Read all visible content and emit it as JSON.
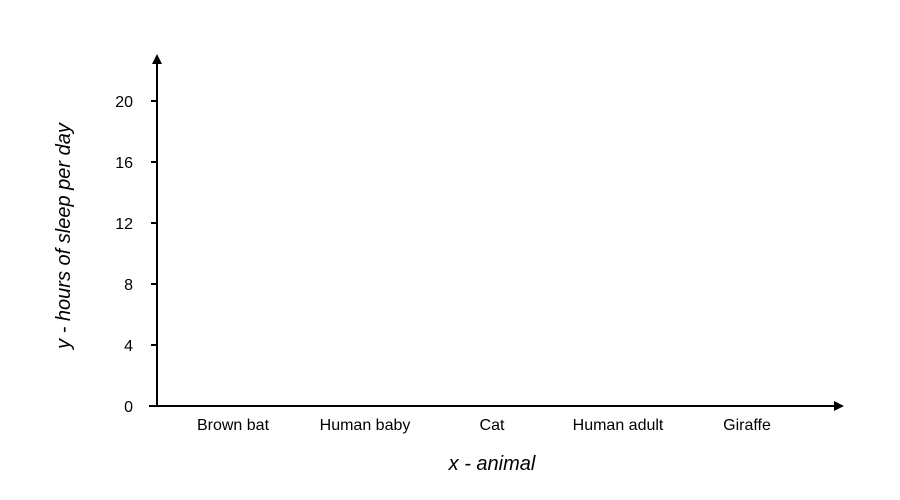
{
  "chart_data": {
    "type": "bar",
    "title": "",
    "xlabel": "x - animal",
    "ylabel": "y - hours of sleep per day",
    "categories": [
      "Brown bat",
      "Human baby",
      "Cat",
      "Human adult",
      "Giraffe"
    ],
    "y_ticks": [
      "0",
      "4",
      "8",
      "12",
      "16",
      "20"
    ],
    "ylim": [
      0,
      23
    ],
    "series": [],
    "grid": false,
    "legend": "none",
    "colors": {
      "axis": "#000000",
      "text": "#000000",
      "background": "#ffffff"
    }
  }
}
